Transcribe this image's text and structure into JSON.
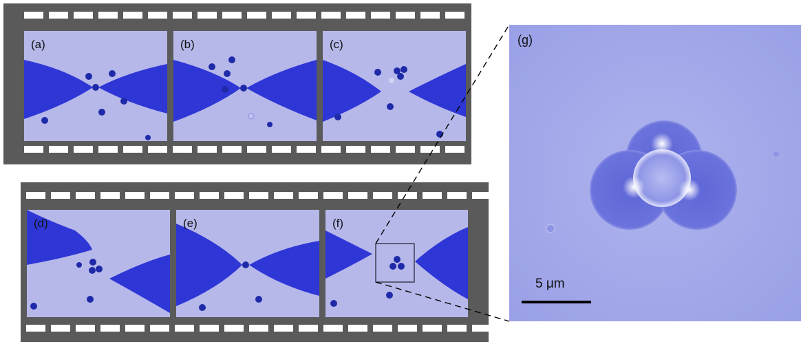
{
  "panels": {
    "a": "(a)",
    "b": "(b)",
    "c": "(c)",
    "d": "(d)",
    "e": "(e)",
    "f": "(f)",
    "g": "(g)"
  },
  "scale_bar": "5 μm",
  "colors": {
    "film": "#5a5a5a",
    "frame_bg": "#b6b8ea",
    "tip": "#2f36d6",
    "zoom_bg": "#a3a8ea"
  }
}
